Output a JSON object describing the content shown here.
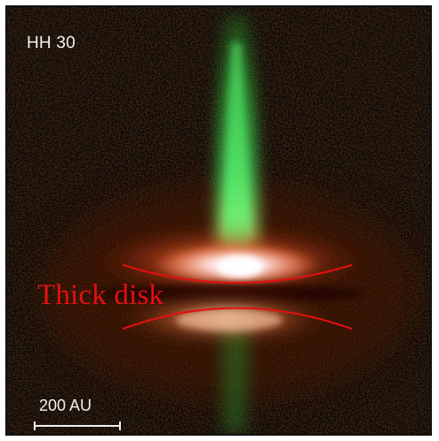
{
  "figure": {
    "object_label": "HH 30",
    "annotation_label": "Thick disk",
    "scale_label": "200 AU"
  },
  "colors": {
    "jet": "#2fd64a",
    "disk_glow": "#ff6a2a",
    "disk_core": "#ffffff",
    "annotation": "#e31010",
    "background": "#050302"
  }
}
